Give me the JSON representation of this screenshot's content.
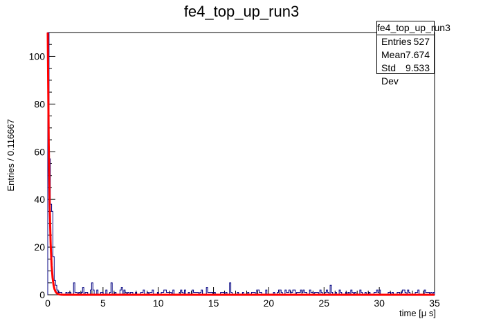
{
  "chart_data": {
    "type": "histogram",
    "title": "fe4_top_up_run3",
    "xlabel": "time [μ s]",
    "ylabel": "Entries / 0.116667",
    "xlim": [
      0,
      35
    ],
    "ylim": [
      0,
      110
    ],
    "xticks": [
      "0",
      "5",
      "10",
      "15",
      "20",
      "25",
      "30",
      "35"
    ],
    "yticks": [
      "0",
      "20",
      "40",
      "60",
      "80",
      "100"
    ],
    "bin_width": 0.116667,
    "hist_bins_first": [
      {
        "x": 0.0,
        "y": 110
      },
      {
        "x": 0.117,
        "y": 57
      },
      {
        "x": 0.233,
        "y": 38
      },
      {
        "x": 0.35,
        "y": 35
      },
      {
        "x": 0.467,
        "y": 16
      },
      {
        "x": 0.583,
        "y": 6
      },
      {
        "x": 0.7,
        "y": 4
      },
      {
        "x": 0.817,
        "y": 2
      },
      {
        "x": 0.933,
        "y": 1
      }
    ],
    "hist_tail_peaks": [
      {
        "x": 2.3,
        "y": 5
      },
      {
        "x": 3.1,
        "y": 3
      },
      {
        "x": 4.0,
        "y": 5
      },
      {
        "x": 5.7,
        "y": 5
      },
      {
        "x": 6.7,
        "y": 3
      },
      {
        "x": 9.5,
        "y": 2
      },
      {
        "x": 11.3,
        "y": 2
      },
      {
        "x": 12.0,
        "y": 2
      },
      {
        "x": 14.3,
        "y": 3
      },
      {
        "x": 16.4,
        "y": 5
      },
      {
        "x": 19.0,
        "y": 2
      },
      {
        "x": 21.0,
        "y": 2
      },
      {
        "x": 25.6,
        "y": 4
      },
      {
        "x": 29.7,
        "y": 2
      },
      {
        "x": 32.3,
        "y": 1
      }
    ],
    "fit": {
      "type": "exponential",
      "amplitude": 110,
      "tau": 0.16,
      "color": "#ff0000"
    },
    "histogram_color": "#000080",
    "stats_box": {
      "name": "fe4_top_up_run3",
      "entries_label": "Entries",
      "entries": "527",
      "mean_label": "Mean",
      "mean": "7.674",
      "stddev_label": "Std Dev",
      "stddev": "9.533"
    }
  }
}
